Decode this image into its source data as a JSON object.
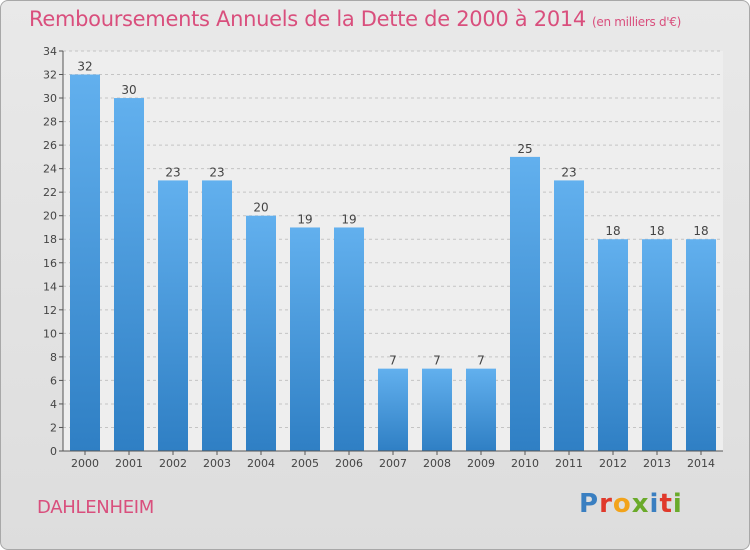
{
  "header": {
    "title": "Remboursements Annuels de la Dette de 2000 à 2014",
    "unit": "(en milliers d'€)"
  },
  "footer": {
    "commune": "DAHLENHEIM",
    "logo_letters": [
      {
        "char": "P",
        "color": "#3a7fc1"
      },
      {
        "char": "r",
        "color": "#e0392b"
      },
      {
        "char": "o",
        "color": "#f2a31b"
      },
      {
        "char": "x",
        "color": "#6aaa2a"
      },
      {
        "char": "i",
        "color": "#3a7fc1"
      },
      {
        "char": "t",
        "color": "#e0392b"
      },
      {
        "char": "i",
        "color": "#6aaa2a"
      }
    ]
  },
  "colors": {
    "title": "#d94f7d",
    "bar_top": "#62b0ee",
    "bar_bottom": "#2f7fc4",
    "grid": "#c4c4c4",
    "plot_bg": "#eeeeee",
    "axis": "#555555",
    "label": "#444444"
  },
  "chart_data": {
    "type": "bar",
    "title": "Remboursements Annuels de la Dette de 2000 à 2014",
    "xlabel": "",
    "ylabel": "en milliers d'€",
    "categories": [
      "2000",
      "2001",
      "2002",
      "2003",
      "2004",
      "2005",
      "2006",
      "2007",
      "2008",
      "2009",
      "2010",
      "2011",
      "2012",
      "2013",
      "2014"
    ],
    "values": [
      32,
      30,
      23,
      23,
      20,
      19,
      19,
      7,
      7,
      7,
      25,
      23,
      18,
      18,
      18
    ],
    "ylim": [
      0,
      34
    ],
    "yticks": [
      0,
      2,
      4,
      6,
      8,
      10,
      12,
      14,
      16,
      18,
      20,
      22,
      24,
      26,
      28,
      30,
      32,
      34
    ],
    "grid": true
  }
}
